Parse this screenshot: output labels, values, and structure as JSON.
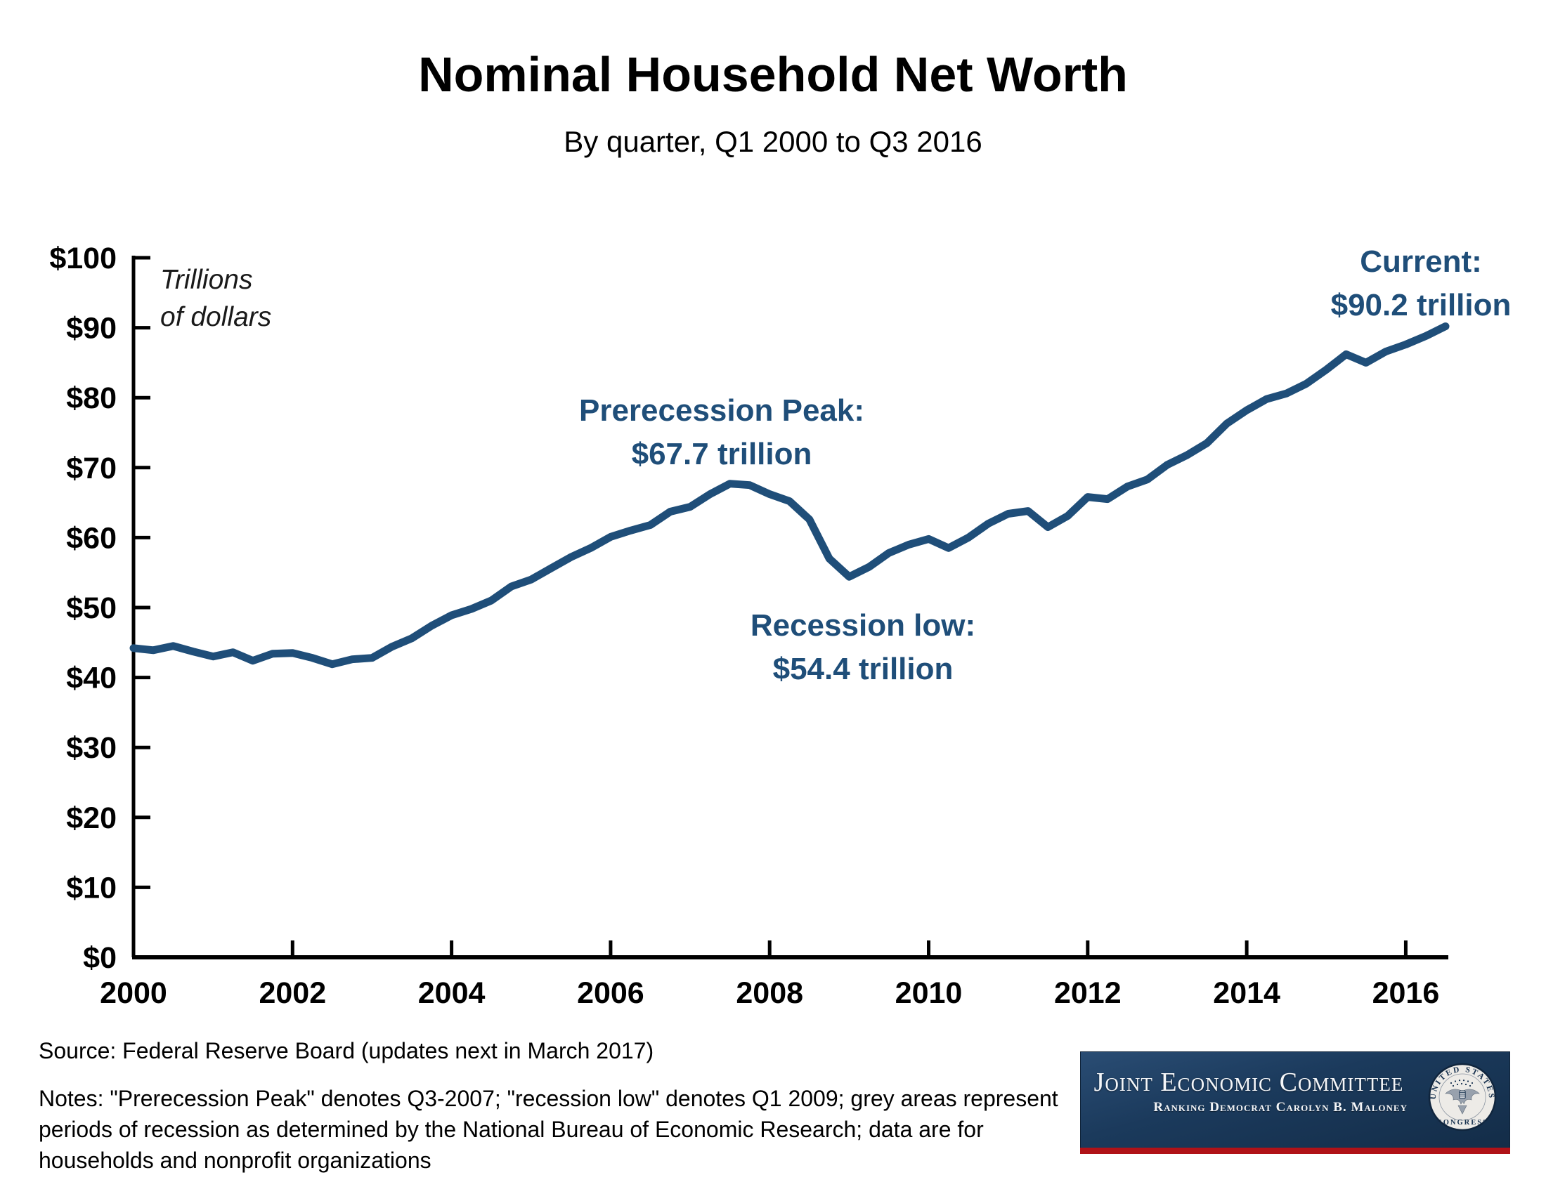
{
  "colors": {
    "accent": "#1F4E79",
    "axis": "#000000",
    "banner_navy": "#1B3A5C",
    "banner_navy_dark": "#132C47",
    "stripe_red": "#B01218",
    "seal_bg": "#EDEBE7"
  },
  "chart_data": {
    "type": "line",
    "title": "Nominal Household Net Worth",
    "subtitle": "By quarter, Q1 2000 to Q3 2016",
    "ylabel": "Trillions of dollars",
    "ylabel_lines": [
      "Trillions",
      "of dollars"
    ],
    "xlim": [
      2000,
      2016.5
    ],
    "ylim": [
      0,
      100
    ],
    "grid": false,
    "x_ticks": [
      2000,
      2002,
      2004,
      2006,
      2008,
      2010,
      2012,
      2014,
      2016
    ],
    "y_ticks": [
      {
        "value": 0,
        "label": "$0"
      },
      {
        "value": 10,
        "label": "$10"
      },
      {
        "value": 20,
        "label": "$20"
      },
      {
        "value": 30,
        "label": "$30"
      },
      {
        "value": 40,
        "label": "$40"
      },
      {
        "value": 50,
        "label": "$50"
      },
      {
        "value": 60,
        "label": "$60"
      },
      {
        "value": 70,
        "label": "$70"
      },
      {
        "value": 80,
        "label": "$80"
      },
      {
        "value": 90,
        "label": "$90"
      },
      {
        "value": 100,
        "label": "$100"
      }
    ],
    "x_start": 2000,
    "x_step_years": 0.25,
    "series": [
      {
        "name": "Nominal household net worth (trillions of dollars)",
        "color": "#1F4E79",
        "values": [
          44.2,
          43.9,
          44.5,
          43.7,
          43.0,
          43.6,
          42.4,
          43.4,
          43.5,
          42.8,
          41.9,
          42.6,
          42.8,
          44.4,
          45.6,
          47.4,
          48.9,
          49.8,
          51.0,
          53.0,
          54.0,
          55.6,
          57.2,
          58.5,
          60.1,
          61.0,
          61.8,
          63.7,
          64.4,
          66.2,
          67.7,
          67.5,
          66.2,
          65.2,
          62.6,
          57.0,
          54.4,
          55.8,
          57.8,
          59.0,
          59.8,
          58.5,
          60.0,
          62.0,
          63.4,
          63.8,
          61.5,
          63.1,
          65.8,
          65.5,
          67.3,
          68.3,
          70.4,
          71.8,
          73.5,
          76.3,
          78.2,
          79.8,
          80.6,
          82.0,
          84.0,
          86.2,
          85.0,
          86.6,
          87.6,
          88.8,
          90.2
        ]
      }
    ],
    "annotations": [
      {
        "id": "prerecession-peak",
        "label": "Prerecession Peak:",
        "value": "$67.7 trillion"
      },
      {
        "id": "recession-low",
        "label": "Recession low:",
        "value": "$54.4 trillion"
      },
      {
        "id": "current",
        "label": "Current:",
        "value": "$90.2 trillion"
      }
    ]
  },
  "footer": {
    "source": "Source: Federal Reserve Board (updates next in March 2017)",
    "notes_lines": [
      "Notes: \"Prerecession Peak\" denotes Q3-2007; \"recession low\" denotes Q1 2009; grey areas represent",
      "periods of recession as determined by the National Bureau of Economic Research; data are for",
      "households and nonprofit organizations"
    ]
  },
  "logo": {
    "title": "Joint Economic Committee",
    "subtitle": "Ranking Democrat Carolyn B. Maloney",
    "seal_top": "UNITED STATES",
    "seal_bottom": "CONGRESS"
  }
}
